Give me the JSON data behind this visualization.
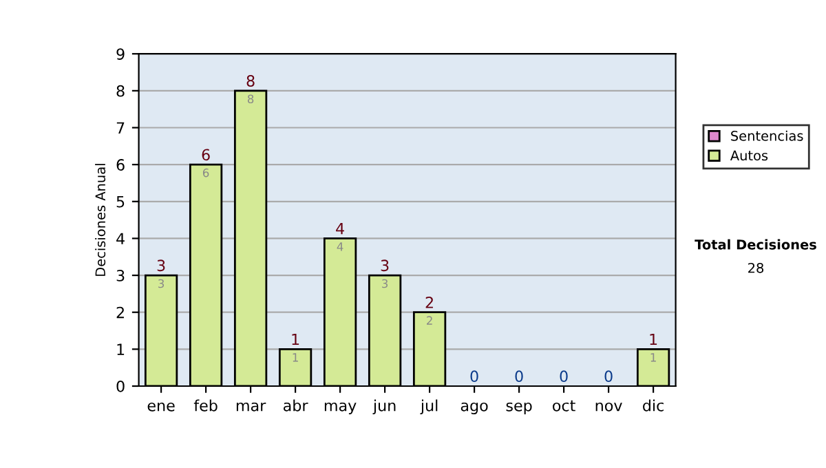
{
  "chart_data": {
    "type": "bar",
    "stacked": true,
    "ylabel": "Decisiones Anual",
    "categories": [
      "ene",
      "feb",
      "mar",
      "abr",
      "may",
      "jun",
      "jul",
      "ago",
      "sep",
      "oct",
      "nov",
      "dic"
    ],
    "series": [
      {
        "name": "Sentencias",
        "color": "#dd88cc",
        "values": [
          0,
          0,
          0,
          0,
          0,
          0,
          0,
          0,
          0,
          0,
          0,
          0
        ]
      },
      {
        "name": "Autos",
        "color": "#d4ea96",
        "values": [
          3,
          6,
          8,
          1,
          4,
          3,
          2,
          0,
          0,
          0,
          0,
          1
        ],
        "value_labels": [
          "3",
          "6",
          "8",
          "1",
          "4",
          "3",
          "2",
          null,
          null,
          null,
          null,
          "1"
        ]
      }
    ],
    "totals": [
      "3",
      "6",
      "8",
      "1",
      "4",
      "3",
      "2",
      "0",
      "0",
      "0",
      "0",
      "1"
    ],
    "ylim": [
      0,
      9
    ],
    "yticks": [
      0,
      1,
      2,
      3,
      4,
      5,
      6,
      7,
      8,
      9
    ],
    "grid": "y",
    "legend": "right",
    "annotations": [
      "Total Decisiones",
      "28"
    ]
  }
}
